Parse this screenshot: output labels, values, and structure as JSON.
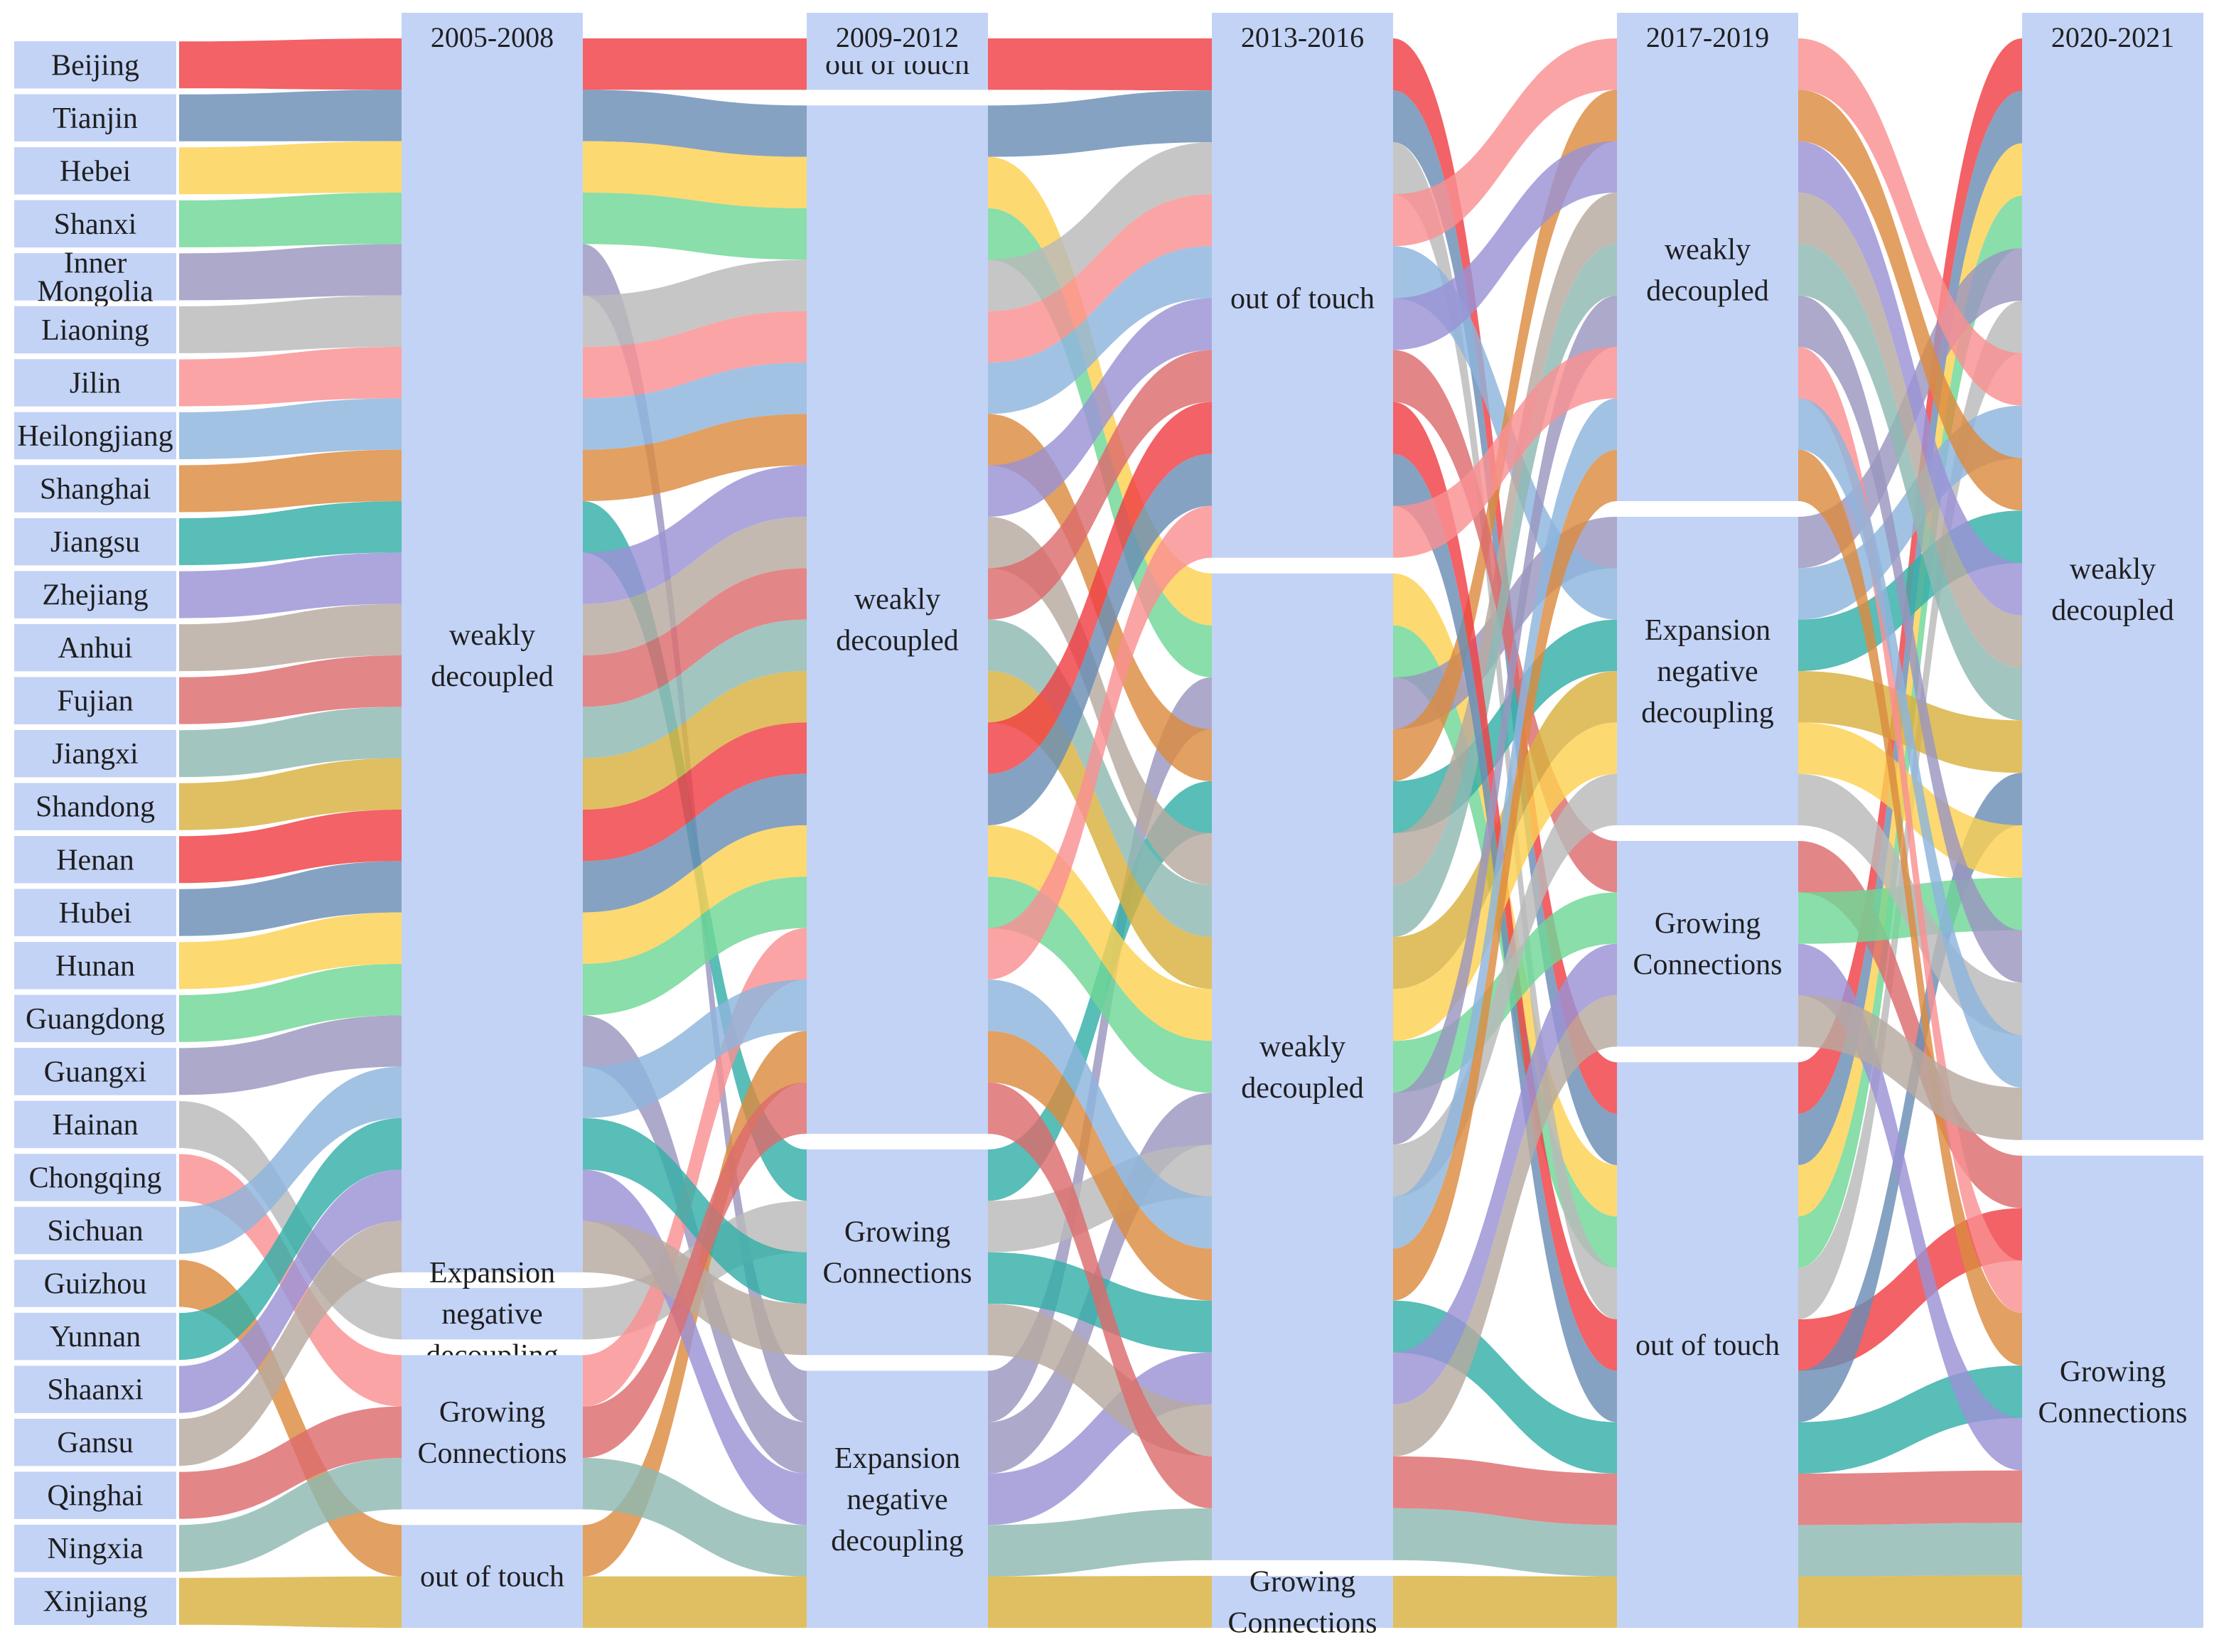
{
  "chart_data": {
    "type": "sankey",
    "title": "",
    "periods": [
      "2005-2008",
      "2009-2012",
      "2013-2016",
      "2017-2019",
      "2020-2021"
    ],
    "states": {
      "oot": "out of touch",
      "wd": "weakly decoupled",
      "gc": "Growing Connections",
      "end": "Expansion negative decoupling"
    },
    "state_label_lines": {
      "oot": [
        "out of touch"
      ],
      "wd": [
        "weakly",
        "decoupled"
      ],
      "gc": [
        "Growing",
        "Connections"
      ],
      "end": [
        "Expansion",
        "negative",
        "decoupling"
      ]
    },
    "node_order": [
      [
        "wd",
        "end",
        "gc",
        "oot"
      ],
      [
        "oot",
        "wd",
        "gc",
        "end"
      ],
      [
        "oot",
        "wd",
        "gc"
      ],
      [
        "wd",
        "end",
        "gc",
        "oot"
      ],
      [
        "wd",
        "gc"
      ]
    ],
    "provinces": [
      {
        "name": "Beijing",
        "label": [
          "Beijing"
        ],
        "color": "#ef4044",
        "path": [
          "wd",
          "oot",
          "oot",
          "oot",
          "wd"
        ]
      },
      {
        "name": "Tianjin",
        "label": [
          "Tianjin"
        ],
        "color": "#6a8db5",
        "path": [
          "wd",
          "wd",
          "oot",
          "oot",
          "wd"
        ]
      },
      {
        "name": "Hebei",
        "label": [
          "Hebei"
        ],
        "color": "#fcd152",
        "path": [
          "wd",
          "wd",
          "wd",
          "oot",
          "wd"
        ]
      },
      {
        "name": "Shanxi",
        "label": [
          "Shanxi"
        ],
        "color": "#6fd796",
        "path": [
          "wd",
          "wd",
          "wd",
          "oot",
          "wd"
        ]
      },
      {
        "name": "Inner Mongolia",
        "label": [
          "Inner",
          "Mongolia"
        ],
        "color": "#9a96bf",
        "path": [
          "wd",
          "end",
          "wd",
          "end",
          "wd"
        ]
      },
      {
        "name": "Liaoning",
        "label": [
          "Liaoning"
        ],
        "color": "#b9b9b9",
        "path": [
          "wd",
          "wd",
          "oot",
          "oot",
          "wd"
        ]
      },
      {
        "name": "Jilin",
        "label": [
          "Jilin"
        ],
        "color": "#f99093",
        "path": [
          "wd",
          "wd",
          "oot",
          "wd",
          "wd"
        ]
      },
      {
        "name": "Heilongjiang",
        "label": [
          "Heilongjiang"
        ],
        "color": "#8eb4dd",
        "path": [
          "wd",
          "wd",
          "oot",
          "end",
          "wd"
        ]
      },
      {
        "name": "Shanghai",
        "label": [
          "Shanghai"
        ],
        "color": "#dc8b40",
        "path": [
          "wd",
          "wd",
          "wd",
          "wd",
          "wd"
        ]
      },
      {
        "name": "Jiangsu",
        "label": [
          "Jiangsu"
        ],
        "color": "#35aea8",
        "path": [
          "wd",
          "gc",
          "wd",
          "end",
          "wd"
        ]
      },
      {
        "name": "Zhejiang",
        "label": [
          "Zhejiang"
        ],
        "color": "#9a92d5",
        "path": [
          "wd",
          "wd",
          "oot",
          "wd",
          "wd"
        ]
      },
      {
        "name": "Anhui",
        "label": [
          "Anhui"
        ],
        "color": "#b7a9a0",
        "path": [
          "wd",
          "wd",
          "wd",
          "wd",
          "wd"
        ]
      },
      {
        "name": "Fujian",
        "label": [
          "Fujian"
        ],
        "color": "#dd6b6c",
        "path": [
          "wd",
          "wd",
          "oot",
          "gc",
          "gc"
        ]
      },
      {
        "name": "Jiangxi",
        "label": [
          "Jiangxi"
        ],
        "color": "#8fb8b2",
        "path": [
          "wd",
          "wd",
          "wd",
          "wd",
          "wd"
        ]
      },
      {
        "name": "Shandong",
        "label": [
          "Shandong"
        ],
        "color": "#d8b13e",
        "path": [
          "wd",
          "wd",
          "wd",
          "end",
          "wd"
        ]
      },
      {
        "name": "Henan",
        "label": [
          "Henan"
        ],
        "color": "#ef4044",
        "path": [
          "wd",
          "wd",
          "oot",
          "oot",
          "gc"
        ]
      },
      {
        "name": "Hubei",
        "label": [
          "Hubei"
        ],
        "color": "#6a8db5",
        "path": [
          "wd",
          "wd",
          "oot",
          "oot",
          "wd"
        ]
      },
      {
        "name": "Hunan",
        "label": [
          "Hunan"
        ],
        "color": "#fcd152",
        "path": [
          "wd",
          "wd",
          "wd",
          "end",
          "wd"
        ]
      },
      {
        "name": "Guangdong",
        "label": [
          "Guangdong"
        ],
        "color": "#6fd796",
        "path": [
          "wd",
          "wd",
          "wd",
          "gc",
          "wd"
        ]
      },
      {
        "name": "Guangxi",
        "label": [
          "Guangxi"
        ],
        "color": "#9a96bf",
        "path": [
          "wd",
          "end",
          "wd",
          "wd",
          "wd"
        ]
      },
      {
        "name": "Hainan",
        "label": [
          "Hainan"
        ],
        "color": "#b9b9b9",
        "path": [
          "end",
          "gc",
          "wd",
          "end",
          "wd"
        ]
      },
      {
        "name": "Chongqing",
        "label": [
          "Chongqing"
        ],
        "color": "#f99093",
        "path": [
          "gc",
          "wd",
          "oot",
          "wd",
          "gc"
        ]
      },
      {
        "name": "Sichuan",
        "label": [
          "Sichuan"
        ],
        "color": "#8eb4dd",
        "path": [
          "wd",
          "wd",
          "wd",
          "wd",
          "wd"
        ]
      },
      {
        "name": "Guizhou",
        "label": [
          "Guizhou"
        ],
        "color": "#dc8b40",
        "path": [
          "oot",
          "wd",
          "wd",
          "wd",
          "gc"
        ]
      },
      {
        "name": "Yunnan",
        "label": [
          "Yunnan"
        ],
        "color": "#35aea8",
        "path": [
          "wd",
          "gc",
          "wd",
          "oot",
          "gc"
        ]
      },
      {
        "name": "Shaanxi",
        "label": [
          "Shaanxi"
        ],
        "color": "#9a92d5",
        "path": [
          "wd",
          "end",
          "wd",
          "gc",
          "gc"
        ]
      },
      {
        "name": "Gansu",
        "label": [
          "Gansu"
        ],
        "color": "#b7a9a0",
        "path": [
          "wd",
          "gc",
          "wd",
          "gc",
          "wd"
        ]
      },
      {
        "name": "Qinghai",
        "label": [
          "Qinghai"
        ],
        "color": "#dd6b6c",
        "path": [
          "gc",
          "wd",
          "wd",
          "oot",
          "gc"
        ]
      },
      {
        "name": "Ningxia",
        "label": [
          "Ningxia"
        ],
        "color": "#8fb8b2",
        "path": [
          "gc",
          "end",
          "wd",
          "oot",
          "gc"
        ]
      },
      {
        "name": "Xinjiang",
        "label": [
          "Xinjiang"
        ],
        "color": "#d8b13e",
        "path": [
          "oot",
          "end",
          "gc",
          "oot",
          "gc"
        ]
      }
    ]
  }
}
